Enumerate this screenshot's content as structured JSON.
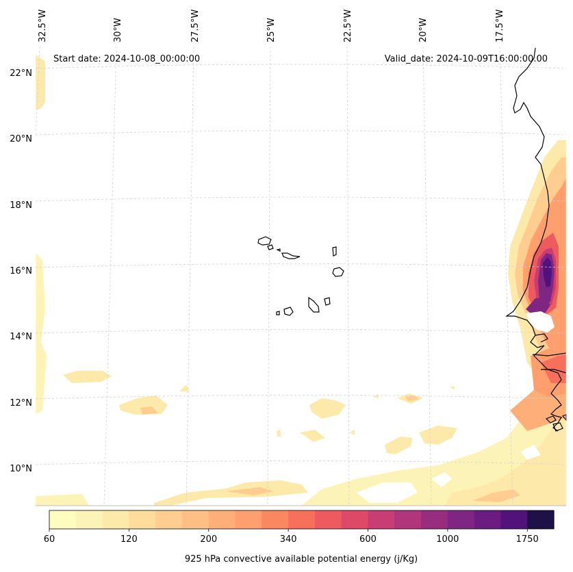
{
  "map": {
    "start_date": "Start date: 2024-10-08_00:00:00",
    "valid_date": "Valid_date: 2024-10-09T16:00:00.00",
    "lon_labels": [
      "32.5°W",
      "30°W",
      "27.5°W",
      "25°W",
      "22.5°W",
      "20°W",
      "17.5°W"
    ],
    "lat_labels": [
      "22°N",
      "20°N",
      "18°N",
      "16°N",
      "14°N",
      "12°N",
      "10°N"
    ],
    "coastline_color": "#000000",
    "gridline_color": "#d0d0d0"
  },
  "colorbar": {
    "label": "925 hPa convective available potential energy (j/Kg)",
    "tick_labels": [
      "60",
      "120",
      "200",
      "340",
      "600",
      "1000",
      "1750"
    ],
    "colors": [
      "#fcfdbf",
      "#fcf4b6",
      "#fde9a9",
      "#fedc9c",
      "#fecd8f",
      "#febf84",
      "#feae77",
      "#fe9f6d",
      "#fb8761",
      "#f7705c",
      "#ee5b5e",
      "#de4968",
      "#c83e73",
      "#b1357b",
      "#982d80",
      "#7f2582",
      "#6a1c81",
      "#51127c",
      "#1d1147"
    ],
    "colormap": "magma_r"
  },
  "chart_data": {
    "type": "heatmap",
    "variable": "925 hPa convective available potential energy",
    "units": "j/Kg",
    "levels": [
      60,
      120,
      200,
      340,
      600,
      1000,
      1750
    ],
    "lon_range": [
      -33,
      -15.5
    ],
    "lat_range": [
      8.8,
      22.8
    ],
    "start_date": "2024-10-08_00:00:00",
    "valid_date": "2024-10-09T16:00:00.00"
  }
}
